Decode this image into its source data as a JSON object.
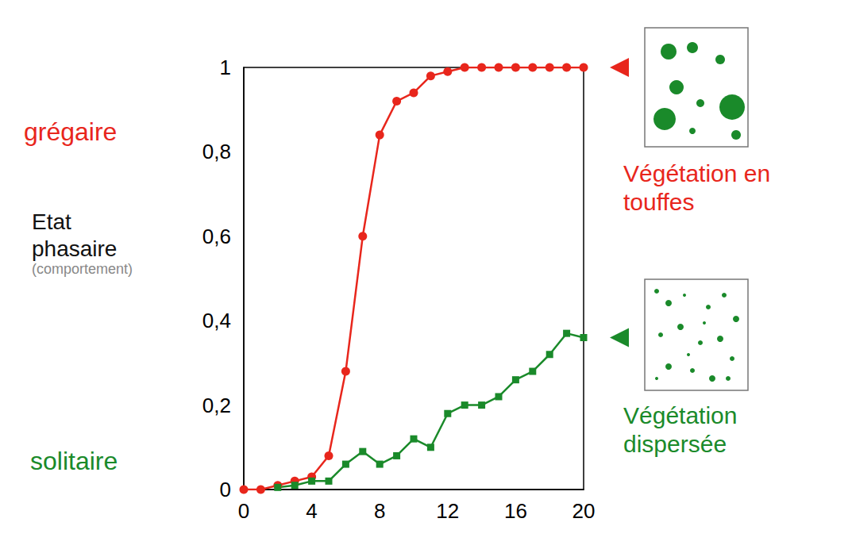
{
  "chart_data": {
    "type": "line",
    "ylabel": "Etat phasaire",
    "annotations": [
      {
        "text": "(comportement)",
        "color": "#888888"
      },
      {
        "text": "grégaire",
        "color": "#e8261c"
      },
      {
        "text": "solitaire",
        "color": "#1a8a2a"
      }
    ],
    "x": [
      0,
      1,
      2,
      3,
      4,
      5,
      6,
      7,
      8,
      9,
      10,
      11,
      12,
      13,
      14,
      15,
      16,
      17,
      18,
      19,
      20
    ],
    "series": [
      {
        "name": "Végétation en touffes",
        "color": "#e8261c",
        "marker": "circle",
        "values": [
          0,
          0,
          0.01,
          0.02,
          0.03,
          0.08,
          0.28,
          0.6,
          0.84,
          0.92,
          0.94,
          0.98,
          0.99,
          1,
          1,
          1,
          1,
          1,
          1,
          1,
          1
        ]
      },
      {
        "name": "Végétation dispersée",
        "color": "#1a8a2a",
        "marker": "square",
        "values": [
          null,
          null,
          0.005,
          0.01,
          0.02,
          0.02,
          0.06,
          0.09,
          0.06,
          0.08,
          0.12,
          0.1,
          0.18,
          0.2,
          0.2,
          0.22,
          0.26,
          0.28,
          0.32,
          0.37,
          0.36
        ]
      }
    ],
    "xlim": [
      0,
      20
    ],
    "xticks": [
      0,
      4,
      8,
      12,
      16,
      20
    ],
    "ylim": [
      0,
      1
    ],
    "yticks": [
      0,
      {
        "value": 0.2,
        "label": "0,2"
      },
      {
        "value": 0.4,
        "label": "0,4"
      },
      {
        "value": 0.6,
        "label": "0,6"
      },
      {
        "value": 0.8,
        "label": "0,8"
      },
      1
    ],
    "grid": false
  }
}
